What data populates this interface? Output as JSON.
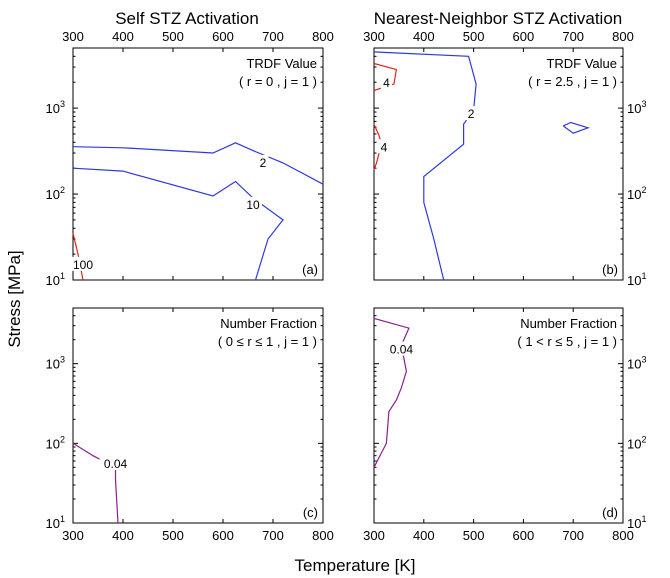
{
  "column_titles": {
    "left": "Self STZ Activation",
    "right": "Nearest-Neighbor STZ Activation"
  },
  "shared_axes": {
    "ylabel": "Stress [MPa]",
    "xlabel": "Temperature [K]"
  },
  "colors": {
    "blue": "#2e3adb",
    "red": "#e0231b",
    "purple": "#8b1e8f",
    "axis": "#000000"
  },
  "chart_data": [
    {
      "type": "line",
      "panel": "(a)",
      "annotation": [
        "TRDF Value",
        "( r = 0 , j = 1 )"
      ],
      "xlim": [
        300,
        800
      ],
      "ylim": [
        10,
        5000
      ],
      "y_scale": "log",
      "x_ticks": [
        "300",
        "400",
        "500",
        "600",
        "700",
        "800"
      ],
      "x_ticks_side": "top",
      "y_ticks_side": "left",
      "series": [
        {
          "color": "#2e3adb",
          "contour_label": "2",
          "label_at": [
            680,
            230
          ],
          "points": [
            [
              300,
              355
            ],
            [
              400,
              345
            ],
            [
              580,
              300
            ],
            [
              625,
              395
            ],
            [
              660,
              320
            ],
            [
              720,
              230
            ],
            [
              800,
              130
            ]
          ]
        },
        {
          "color": "#2e3adb",
          "contour_label": "10",
          "label_at": [
            660,
            75
          ],
          "points": [
            [
              300,
              200
            ],
            [
              400,
              185
            ],
            [
              580,
              95
            ],
            [
              625,
              140
            ],
            [
              660,
              90
            ],
            [
              720,
              50
            ],
            [
              690,
              30
            ],
            [
              665,
              10
            ]
          ]
        },
        {
          "color": "#e0231b",
          "contour_label": "100",
          "label_at": [
            320,
            15
          ],
          "points": [
            [
              300,
              35
            ],
            [
              310,
              20
            ],
            [
              320,
              10
            ]
          ]
        }
      ]
    },
    {
      "type": "line",
      "panel": "(b)",
      "annotation": [
        "TRDF Value",
        "( r = 2.5 , j = 1 )"
      ],
      "xlim": [
        300,
        800
      ],
      "ylim": [
        10,
        5000
      ],
      "y_scale": "log",
      "x_ticks": [
        "300",
        "400",
        "500",
        "600",
        "700",
        "800"
      ],
      "x_ticks_side": "top",
      "y_ticks_side": "right",
      "series": [
        {
          "color": "#2e3adb",
          "contour_label": "2",
          "label_at": [
            495,
            850
          ],
          "points": [
            [
              300,
              4500
            ],
            [
              490,
              4000
            ],
            [
              505,
              1900
            ],
            [
              500,
              950
            ],
            [
              480,
              650
            ],
            [
              480,
              380
            ],
            [
              400,
              160
            ],
            [
              400,
              80
            ],
            [
              420,
              30
            ],
            [
              440,
              10
            ]
          ]
        },
        {
          "color": "#2e3adb",
          "contour_label": "",
          "label_at": null,
          "points": [
            [
              680,
              620
            ],
            [
              695,
              680
            ],
            [
              730,
              590
            ],
            [
              700,
              510
            ],
            [
              680,
              620
            ]
          ]
        },
        {
          "color": "#e0231b",
          "contour_label": "4",
          "label_at": [
            325,
            1950
          ],
          "points": [
            [
              300,
              3300
            ],
            [
              345,
              2800
            ],
            [
              340,
              1900
            ],
            [
              300,
              1600
            ]
          ]
        },
        {
          "color": "#e0231b",
          "contour_label": "4",
          "label_at": [
            320,
            350
          ],
          "points": [
            [
              300,
              650
            ],
            [
              310,
              480
            ],
            [
              315,
              380
            ],
            [
              305,
              230
            ],
            [
              300,
              190
            ]
          ]
        }
      ]
    },
    {
      "type": "line",
      "panel": "(c)",
      "annotation": [
        "Number Fraction",
        "( 0 ≤ r ≤ 1 , j = 1 )"
      ],
      "xlim": [
        300,
        800
      ],
      "ylim": [
        10,
        5000
      ],
      "y_scale": "log",
      "x_ticks": [
        "300",
        "400",
        "500",
        "600",
        "700",
        "800"
      ],
      "x_ticks_side": "bottom",
      "y_ticks_side": "left",
      "series": [
        {
          "color": "#8b1e8f",
          "contour_label": "0.04",
          "label_at": [
            385,
            55
          ],
          "points": [
            [
              300,
              100
            ],
            [
              340,
              70
            ],
            [
              385,
              50
            ],
            [
              385,
              35
            ],
            [
              390,
              10
            ]
          ]
        }
      ]
    },
    {
      "type": "line",
      "panel": "(d)",
      "annotation": [
        "Number Fraction",
        "( 1 < r ≤ 5 , j = 1 )"
      ],
      "xlim": [
        300,
        800
      ],
      "ylim": [
        10,
        5000
      ],
      "y_scale": "log",
      "x_ticks": [
        "300",
        "400",
        "500",
        "600",
        "700",
        "800"
      ],
      "x_ticks_side": "bottom",
      "y_ticks_side": "right",
      "series": [
        {
          "color": "#8b1e8f",
          "contour_label": "0.04",
          "label_at": [
            355,
            1500
          ],
          "points": [
            [
              300,
              3700
            ],
            [
              370,
              2800
            ],
            [
              355,
              1700
            ],
            [
              365,
              800
            ],
            [
              355,
              500
            ],
            [
              345,
              350
            ],
            [
              330,
              250
            ],
            [
              325,
              100
            ],
            [
              300,
              50
            ]
          ]
        }
      ]
    }
  ]
}
